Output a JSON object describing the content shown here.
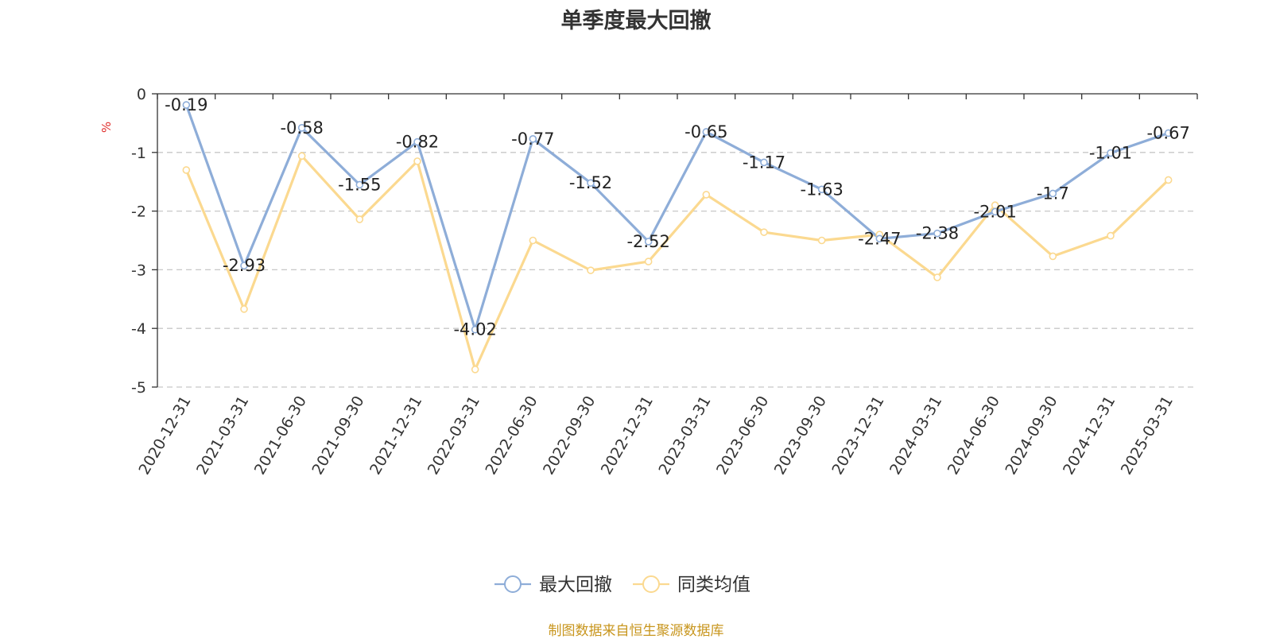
{
  "chart_data": {
    "type": "line",
    "title": "单季度最大回撤",
    "ylabel": "%",
    "ylim": [
      -5,
      0
    ],
    "yticks": [
      "0",
      "-1",
      "-2",
      "-3",
      "-4",
      "-5"
    ],
    "grid": true,
    "legend_position": "bottom",
    "categories": [
      "2020-12-31",
      "2021-03-31",
      "2021-06-30",
      "2021-09-30",
      "2021-12-31",
      "2022-03-31",
      "2022-06-30",
      "2022-09-30",
      "2022-12-31",
      "2023-03-31",
      "2023-06-30",
      "2023-09-30",
      "2023-12-31",
      "2024-03-31",
      "2024-06-30",
      "2024-09-30",
      "2024-12-31",
      "2025-03-31"
    ],
    "series": [
      {
        "name": "最大回撤",
        "color": "#8eadd8",
        "values": [
          -0.19,
          -2.93,
          -0.58,
          -1.55,
          -0.82,
          -4.02,
          -0.77,
          -1.52,
          -2.52,
          -0.65,
          -1.17,
          -1.63,
          -2.47,
          -2.38,
          -2.01,
          -1.7,
          -1.01,
          -0.67
        ],
        "labels": [
          "-0.19",
          "-2.93",
          "-0.58",
          "-1.55",
          "-0.82",
          "-4.02",
          "-0.77",
          "-1.52",
          "-2.52",
          "-0.65",
          "-1.17",
          "-1.63",
          "-2.47",
          "-2.38",
          "-2.01",
          "-1.7",
          "-1.01",
          "-0.67"
        ]
      },
      {
        "name": "同类均值",
        "color": "#fbd990",
        "values": [
          -1.3,
          -3.67,
          -1.06,
          -2.14,
          -1.15,
          -4.7,
          -2.5,
          -3.01,
          -2.86,
          -1.72,
          -2.36,
          -2.5,
          -2.4,
          -3.13,
          -1.9,
          -2.77,
          -2.42,
          -1.47
        ]
      }
    ]
  },
  "source_text": "制图数据来自恒生聚源数据库"
}
